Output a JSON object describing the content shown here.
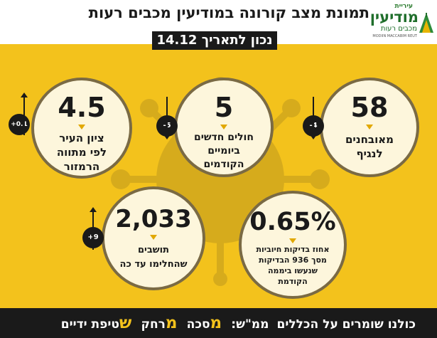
{
  "header": {
    "title": "תמונת מצב קורונה במודיעין מכבים רעות",
    "date_label": "נכון לתאריך 14.12"
  },
  "logo": {
    "small_text": "עיריית",
    "main_text": "מודיעין",
    "sub_text": "מכבים רעות",
    "english_text": "MODIIN MACCABIM REUT"
  },
  "stats": [
    {
      "value": "58",
      "label_lines": [
        "מאובחנים",
        "לנגיף"
      ],
      "change": "-4",
      "direction": "down"
    },
    {
      "value": "5",
      "label_lines": [
        "חולים חדשים",
        "ביומיים",
        "הקודמים"
      ],
      "change": "-5",
      "direction": "down"
    },
    {
      "value": "4.5",
      "label_lines": [
        "ציון העיר",
        "לפי מתווה",
        "הרמזור"
      ],
      "change": "+0.1",
      "direction": "up"
    },
    {
      "value": "0.65%",
      "label_lines": [
        "אחוז בדיקות חיוביות",
        "מסך 936 הבדיקות",
        "שנעשו ביממה",
        "הקודמת"
      ],
      "change": "",
      "direction": ""
    },
    {
      "value": "2,033",
      "label_lines": [
        "תושבים",
        "שהחלימו עד כה"
      ],
      "change": "+9",
      "direction": "up"
    }
  ],
  "footer": {
    "prefix": "כולנו שומרים על הכללים",
    "mamash": "ממ\"ש:",
    "mask_letter": "מ",
    "mask_rest": "סכה",
    "distance_letter": "מ",
    "distance_rest": "רחק",
    "hands_letter": "ש",
    "hands_rest": "טיפת ידיים"
  },
  "colors": {
    "background_yellow": "#f3c21c",
    "bubble_fill": "#fdf6dc",
    "dark": "#1a1a1a",
    "logo_green": "#1f6e2b"
  }
}
